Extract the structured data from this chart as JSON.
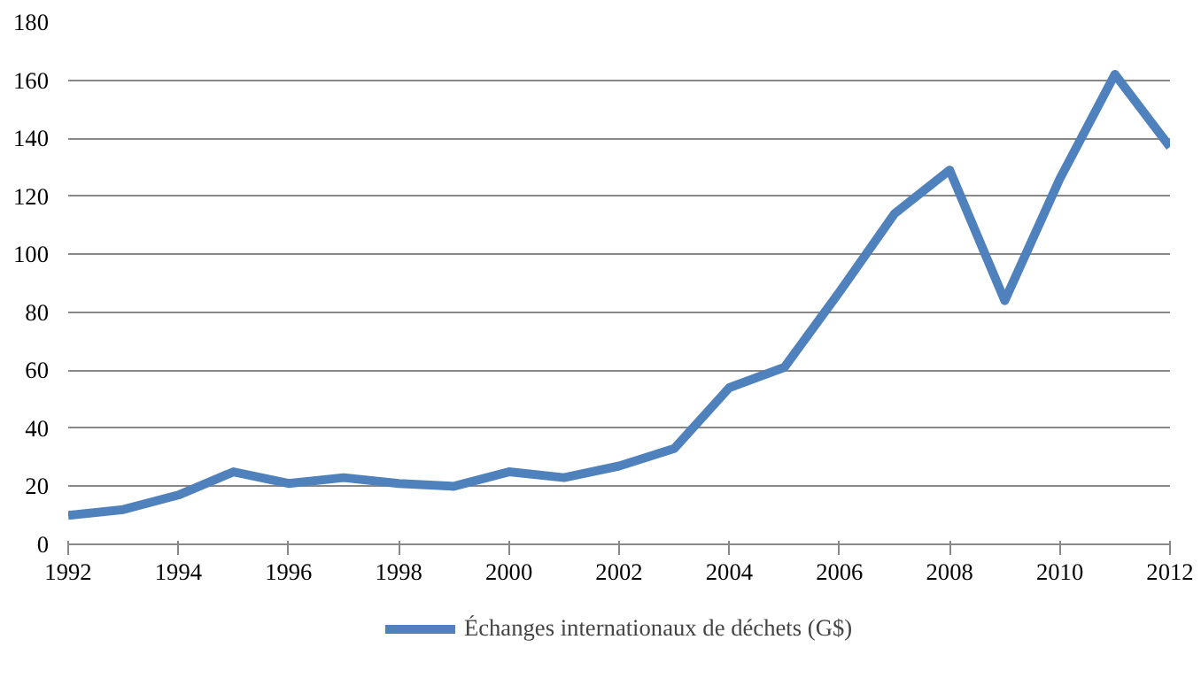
{
  "chart_data": {
    "type": "line",
    "x": [
      1992,
      1993,
      1994,
      1995,
      1996,
      1997,
      1998,
      1999,
      2000,
      2001,
      2002,
      2003,
      2004,
      2005,
      2006,
      2007,
      2008,
      2009,
      2010,
      2011,
      2012
    ],
    "series": [
      {
        "name": "Échanges internationaux de déchets (G$)",
        "color": "#4f81bd",
        "values": [
          10,
          12,
          17,
          25,
          21,
          23,
          21,
          20,
          25,
          23,
          27,
          33,
          54,
          61,
          87,
          114,
          129,
          84,
          126,
          162,
          137
        ]
      }
    ],
    "xlim": [
      1992,
      2012
    ],
    "xticks": [
      1992,
      1994,
      1996,
      1998,
      2000,
      2002,
      2004,
      2006,
      2008,
      2010,
      2012
    ],
    "ylim": [
      0,
      180
    ],
    "yticks": [
      0,
      20,
      40,
      60,
      80,
      100,
      120,
      140,
      160,
      180
    ],
    "grid": "y",
    "legend": "bottom",
    "marker": "none",
    "line_style": "solid"
  }
}
